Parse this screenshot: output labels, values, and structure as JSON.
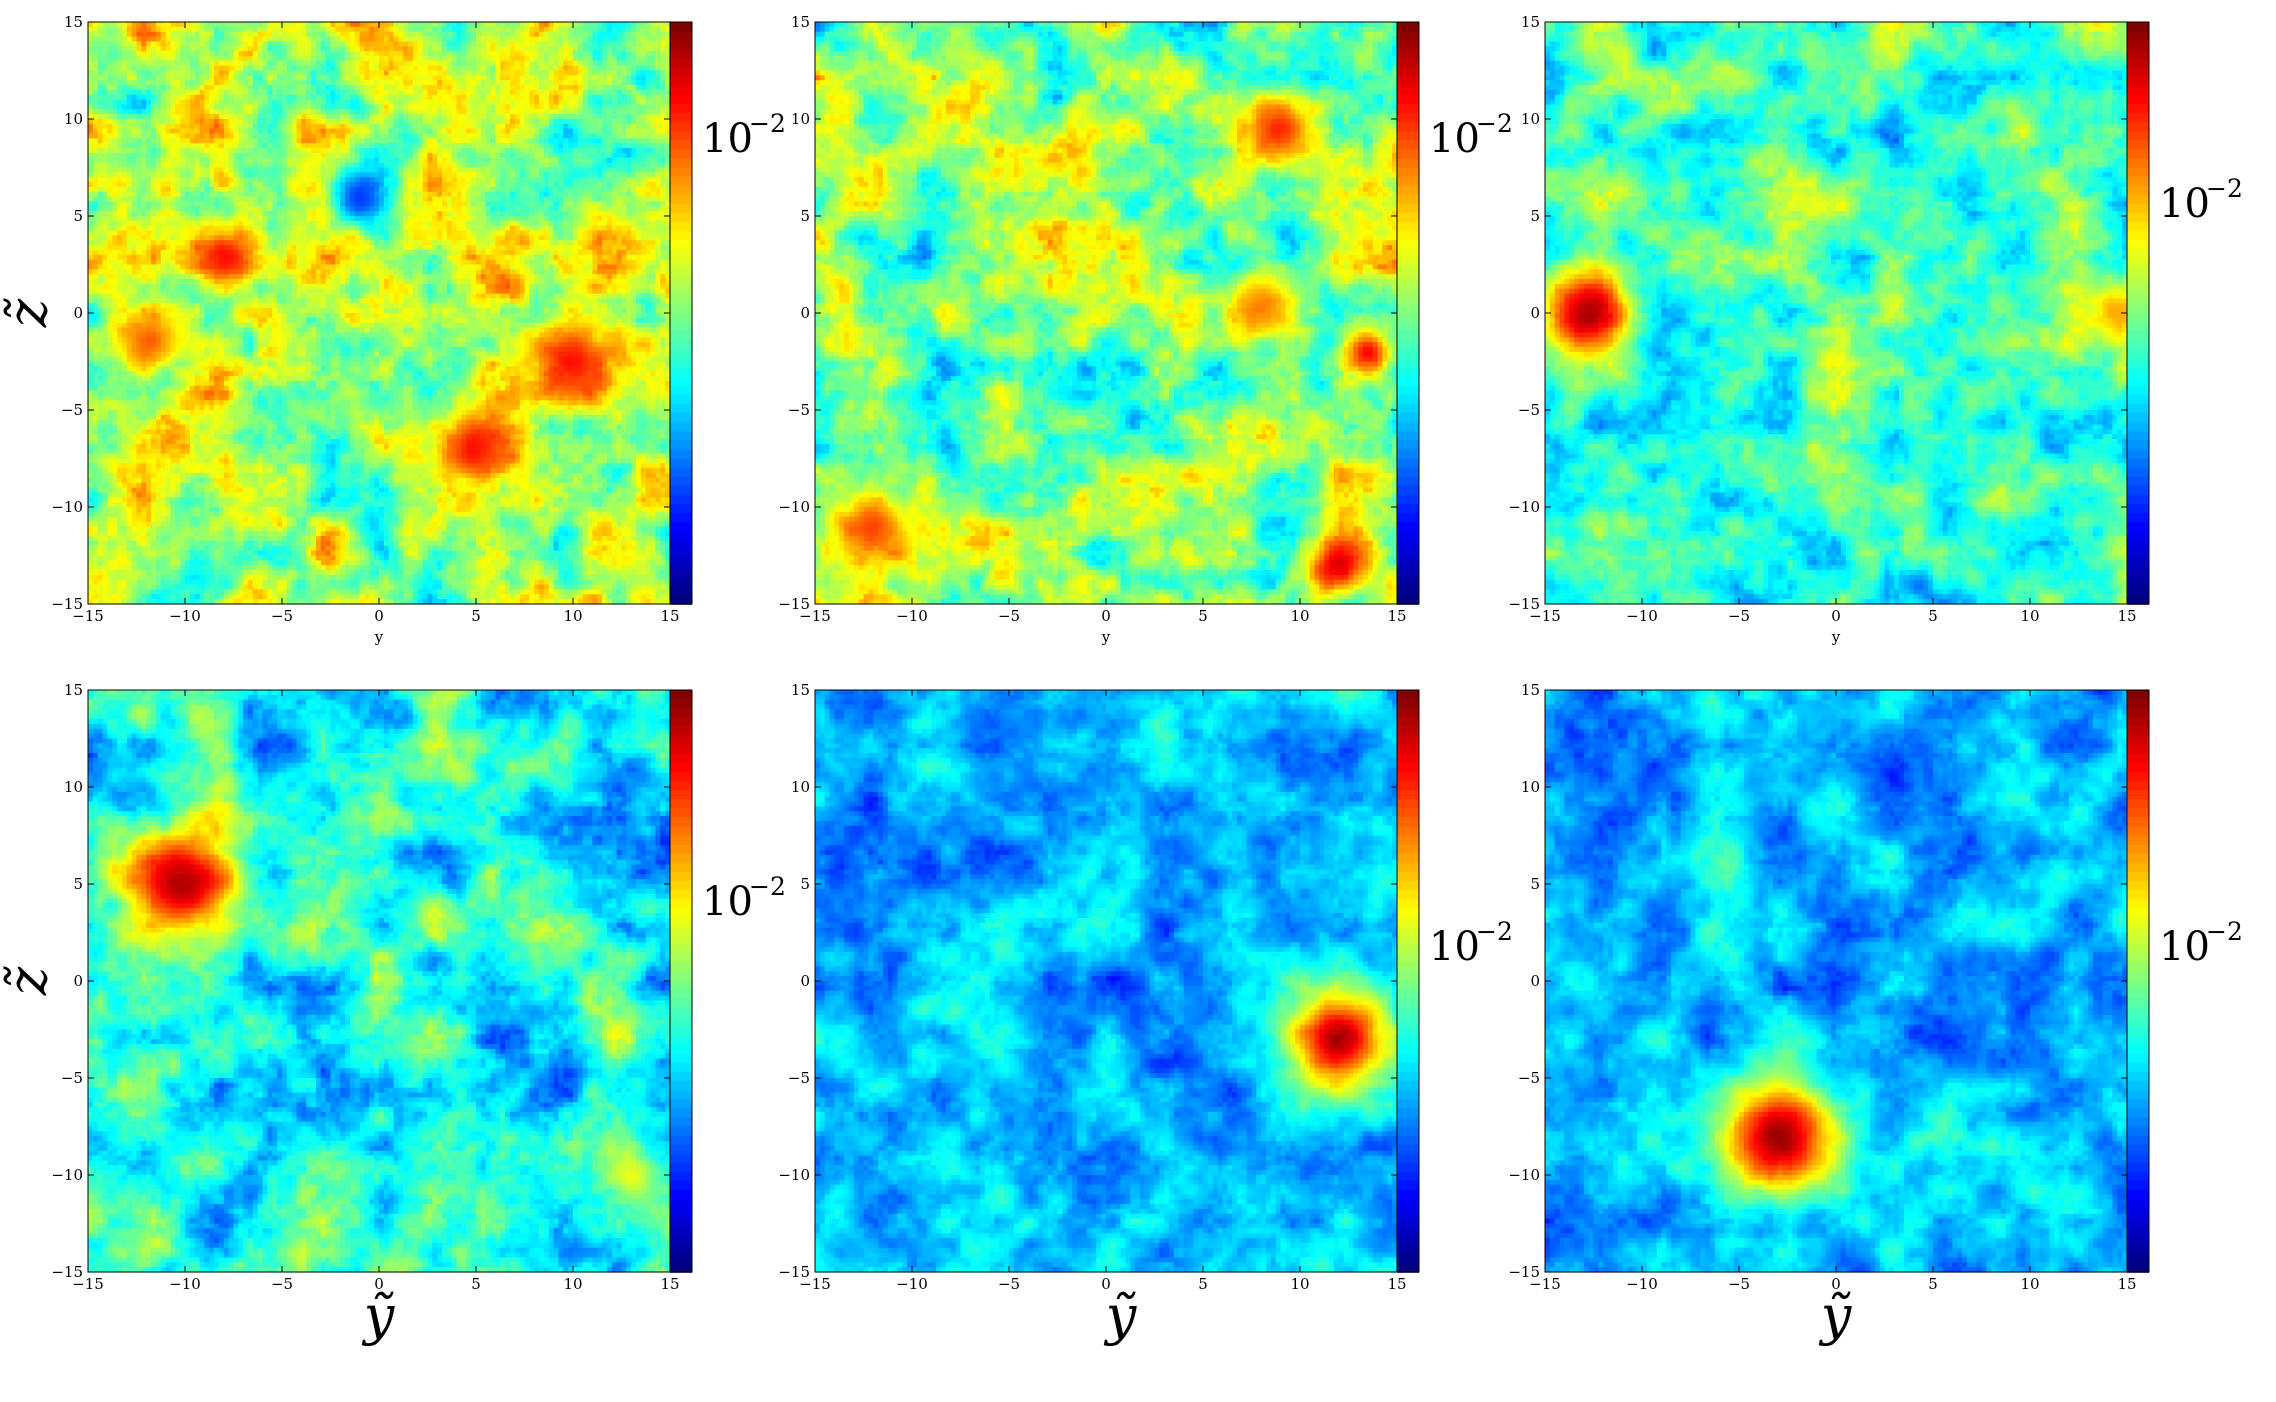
{
  "chart_data": [
    {
      "type": "heatmap",
      "panel": "top-left",
      "xlabel": "y",
      "ylabel": "z̃",
      "colorbar_label": "10",
      "colorbar_exp": "−2",
      "xlim": [
        -15,
        15
      ],
      "ylim": [
        -15,
        15
      ],
      "xticks": [
        -15,
        -10,
        -5,
        0,
        5,
        10,
        15
      ],
      "yticks": [
        -15,
        -10,
        -5,
        0,
        5,
        10,
        15
      ],
      "background_level": 0.55,
      "noise_amplitude": 0.3,
      "blobs": [
        {
          "y": -8,
          "z": 3,
          "r": 1.5,
          "level": 0.85
        },
        {
          "y": 5,
          "z": -7,
          "r": 2,
          "level": 0.85
        },
        {
          "y": 10,
          "z": -2.5,
          "r": 2,
          "level": 0.85
        },
        {
          "y": -12,
          "z": -1.5,
          "r": 1.5,
          "level": 0.8
        },
        {
          "y": -1,
          "z": 6,
          "r": 1.5,
          "level": 0.2
        }
      ]
    },
    {
      "type": "heatmap",
      "panel": "top-middle",
      "xlabel": "y",
      "ylabel": "",
      "colorbar_label": "10",
      "colorbar_exp": "−2",
      "xlim": [
        -15,
        15
      ],
      "ylim": [
        -15,
        15
      ],
      "xticks": [
        -15,
        -10,
        -5,
        0,
        5,
        10,
        15
      ],
      "yticks": [
        -15,
        -10,
        -5,
        0,
        5,
        10,
        15
      ],
      "background_level": 0.5,
      "noise_amplitude": 0.3,
      "blobs": [
        {
          "y": 9,
          "z": 9.5,
          "r": 1.8,
          "level": 0.85
        },
        {
          "y": 13.5,
          "z": -2,
          "r": 1.2,
          "level": 0.9
        },
        {
          "y": 12,
          "z": -13,
          "r": 1.5,
          "level": 0.9
        },
        {
          "y": 8,
          "z": 0.5,
          "r": 1.8,
          "level": 0.75
        },
        {
          "y": -12,
          "z": -11,
          "r": 2,
          "level": 0.8
        }
      ]
    },
    {
      "type": "heatmap",
      "panel": "top-right",
      "xlabel": "y",
      "ylabel": "",
      "colorbar_label": "10",
      "colorbar_exp": "−2",
      "xlim": [
        -15,
        15
      ],
      "ylim": [
        -15,
        15
      ],
      "xticks": [
        -15,
        -10,
        -5,
        0,
        5,
        10,
        15
      ],
      "yticks": [
        -15,
        -10,
        -5,
        0,
        5,
        10,
        15
      ],
      "background_level": 0.42,
      "noise_amplitude": 0.25,
      "blobs": [
        {
          "y": -13,
          "z": 0,
          "r": 2.2,
          "level": 0.95
        },
        {
          "y": 14.5,
          "z": 0,
          "r": 1.5,
          "level": 0.7
        }
      ]
    },
    {
      "type": "heatmap",
      "panel": "bottom-left",
      "xlabel": "ỹ",
      "ylabel": "z̃",
      "colorbar_label": "10",
      "colorbar_exp": "−2",
      "xlim": [
        -15,
        15
      ],
      "ylim": [
        -15,
        15
      ],
      "xticks": [
        -15,
        -10,
        -5,
        0,
        5,
        10,
        15
      ],
      "yticks": [
        -15,
        -10,
        -5,
        0,
        5,
        10,
        15
      ],
      "background_level": 0.38,
      "noise_amplitude": 0.25,
      "blobs": [
        {
          "y": -10,
          "z": 5,
          "r": 2.8,
          "level": 0.95
        },
        {
          "y": 13,
          "z": -10,
          "r": 1.5,
          "level": 0.6
        }
      ]
    },
    {
      "type": "heatmap",
      "panel": "bottom-middle",
      "xlabel": "ỹ",
      "ylabel": "",
      "colorbar_label": "10",
      "colorbar_exp": "−2",
      "xlim": [
        -15,
        15
      ],
      "ylim": [
        -15,
        15
      ],
      "xticks": [
        -15,
        -10,
        -5,
        0,
        5,
        10,
        15
      ],
      "yticks": [
        -15,
        -10,
        -5,
        0,
        5,
        10,
        15
      ],
      "background_level": 0.3,
      "noise_amplitude": 0.18,
      "blobs": [
        {
          "y": 12,
          "z": -3,
          "r": 2.4,
          "level": 0.97
        }
      ]
    },
    {
      "type": "heatmap",
      "panel": "bottom-right",
      "xlabel": "ỹ",
      "ylabel": "",
      "colorbar_label": "10",
      "colorbar_exp": "−2",
      "xlim": [
        -15,
        15
      ],
      "ylim": [
        -15,
        15
      ],
      "xticks": [
        -15,
        -10,
        -5,
        0,
        5,
        10,
        15
      ],
      "yticks": [
        -15,
        -10,
        -5,
        0,
        5,
        10,
        15
      ],
      "background_level": 0.3,
      "noise_amplitude": 0.18,
      "blobs": [
        {
          "y": -3,
          "z": -8,
          "r": 2.8,
          "level": 0.97
        }
      ]
    }
  ]
}
